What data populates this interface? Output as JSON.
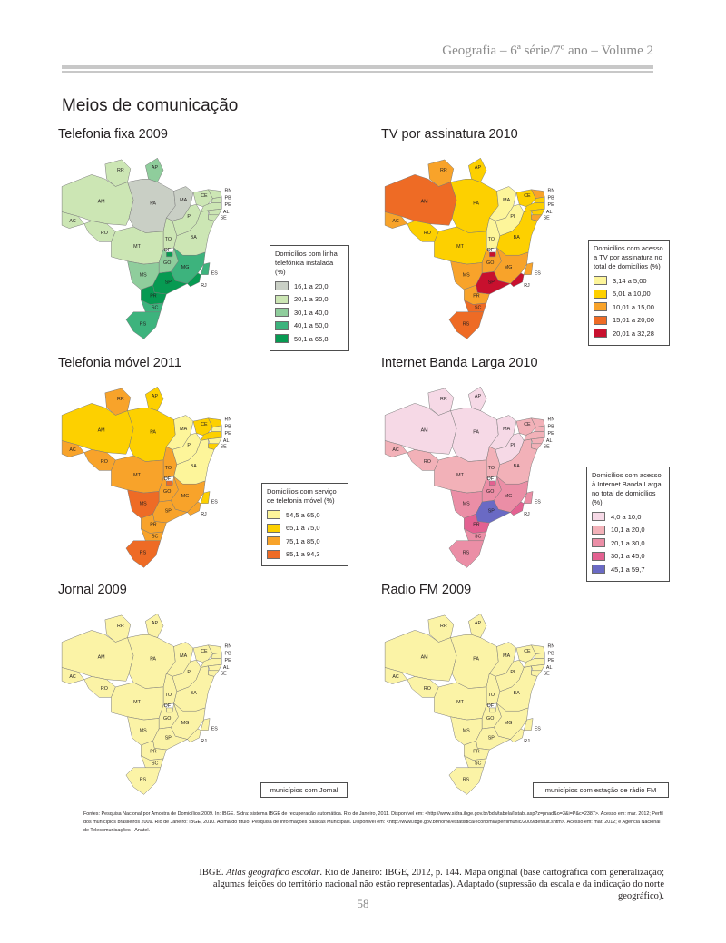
{
  "header": {
    "running_head": "Geografia – 6ª série/7º ano – Volume 2"
  },
  "title": "Meios de comunicação",
  "state_labels": [
    "RR",
    "AP",
    "AM",
    "PA",
    "MA",
    "CE",
    "RN",
    "PB",
    "PE",
    "AL",
    "SE",
    "AC",
    "RO",
    "TO",
    "PI",
    "BA",
    "MT",
    "DF",
    "GO",
    "MG",
    "ES",
    "MS",
    "SP",
    "RJ",
    "PR",
    "SC",
    "RS"
  ],
  "panels": [
    {
      "title": "Telefonia fixa 2009",
      "legend_title": "Domicílios com linha telefônica instalada (%)",
      "legend": [
        {
          "label": "16,1 a 20,0",
          "color": "#c9cfc5"
        },
        {
          "label": "20,1 a 30,0",
          "color": "#cce6b4"
        },
        {
          "label": "30,1 a 40,0",
          "color": "#8fcd9c"
        },
        {
          "label": "40,1 a 50,0",
          "color": "#3db37d"
        },
        {
          "label": "50,1 a 65,8",
          "color": "#079a52"
        }
      ],
      "states": {
        "RR": 1,
        "AP": 2,
        "AM": 1,
        "PA": 0,
        "MA": 0,
        "CE": 1,
        "RN": 1,
        "PB": 1,
        "PE": 1,
        "AL": 1,
        "SE": 1,
        "AC": 1,
        "RO": 1,
        "TO": 1,
        "PI": 1,
        "BA": 1,
        "MT": 1,
        "DF": 4,
        "GO": 2,
        "MG": 3,
        "ES": 3,
        "MS": 2,
        "SP": 4,
        "RJ": 4,
        "PR": 4,
        "SC": 3,
        "RS": 3
      }
    },
    {
      "title": "TV por assinatura 2010",
      "legend_title": "Domicílios com acesso a TV por assinatura no total de domicílios (%)",
      "legend": [
        {
          "label": "3,14 a 5,00",
          "color": "#fdf59a"
        },
        {
          "label": "5,01 a 10,00",
          "color": "#fdd000"
        },
        {
          "label": "10,01 a 15,00",
          "color": "#f8a32a"
        },
        {
          "label": "15,01 a 20,00",
          "color": "#ee6b25"
        },
        {
          "label": "20,01 a 32,28",
          "color": "#c8102e"
        }
      ],
      "states": {
        "RR": 2,
        "AP": 1,
        "AM": 3,
        "PA": 1,
        "MA": 0,
        "CE": 1,
        "RN": 2,
        "PB": 1,
        "PE": 1,
        "AL": 1,
        "SE": 2,
        "AC": 2,
        "RO": 1,
        "TO": 0,
        "PI": 0,
        "BA": 1,
        "MT": 1,
        "DF": 4,
        "GO": 2,
        "MG": 2,
        "ES": 2,
        "MS": 2,
        "SP": 4,
        "RJ": 4,
        "PR": 2,
        "SC": 3,
        "RS": 3
      }
    },
    {
      "title": "Telefonia móvel 2011",
      "legend_title": "Domicílios com serviço de telefonia móvel (%)",
      "legend": [
        {
          "label": "54,5 a 65,0",
          "color": "#fdf59a"
        },
        {
          "label": "65,1 a 75,0",
          "color": "#fdd000"
        },
        {
          "label": "75,1 a 85,0",
          "color": "#f8a32a"
        },
        {
          "label": "85,1 a 94,3",
          "color": "#ee6b25"
        }
      ],
      "states": {
        "RR": 2,
        "AP": 1,
        "AM": 1,
        "PA": 1,
        "MA": 0,
        "CE": 1,
        "RN": 1,
        "PB": 0,
        "PE": 1,
        "AL": 0,
        "SE": 1,
        "AC": 2,
        "RO": 2,
        "TO": 2,
        "PI": 0,
        "BA": 0,
        "MT": 2,
        "DF": 3,
        "GO": 2,
        "MG": 2,
        "ES": 1,
        "MS": 3,
        "SP": 2,
        "RJ": 2,
        "PR": 2,
        "SC": 2,
        "RS": 3
      }
    },
    {
      "title": "Internet Banda Larga 2010",
      "legend_title": "Domicílios com acesso à Internet Banda Larga no total de domicílios (%)",
      "legend": [
        {
          "label": "4,0 a 10,0",
          "color": "#f6d9e6"
        },
        {
          "label": "10,1 a 20,0",
          "color": "#f2b1b8"
        },
        {
          "label": "20,1 a 30,0",
          "color": "#eb8ea6"
        },
        {
          "label": "30,1 a 45,0",
          "color": "#e36191"
        },
        {
          "label": "45,1 a 59,7",
          "color": "#6a6ac4"
        }
      ],
      "states": {
        "RR": 0,
        "AP": 0,
        "AM": 0,
        "PA": 0,
        "MA": 0,
        "CE": 1,
        "RN": 1,
        "PB": 1,
        "PE": 1,
        "AL": 1,
        "SE": 1,
        "AC": 1,
        "RO": 1,
        "TO": 1,
        "PI": 0,
        "BA": 1,
        "MT": 1,
        "DF": 3,
        "GO": 2,
        "MG": 2,
        "ES": 2,
        "MS": 2,
        "SP": 4,
        "RJ": 3,
        "PR": 3,
        "SC": 2,
        "RS": 2
      }
    },
    {
      "title": "Jornal 2009",
      "simple_legend": "municípios com Jornal",
      "fill": "#fbf3a6"
    },
    {
      "title": "Radio FM 2009",
      "simple_legend": "municípios com estação de rádio FM",
      "fill": "#fbf3a6"
    }
  ],
  "sources": "Fontes: Pesquisa Nacional por Amostra de Domicílios 2009. In: IBGE. Sidra: sistema IBGE de recuperação automática. Rio de Janeiro, 2011. Disponível em: <http://www.sidra.ibge.gov.br/bda/tabela/listabl.asp?z=pnad&o=3&i=P&c=2387>. Acesso em: mar. 2012; Perfil dos municípios brasileiros 2009. Rio de Janeiro: IBGE, 2010. Acima do título: Pesquisa de Informações Básicas Municipais. Disponível em: <http://www.ibge.gov.br/home/estatistica/economia/perfilmunic/2009/default.shtm>. Acesso em: mar. 2012; e Agência Nacional de Telecomunicações - Anatel.",
  "credit": {
    "prefix": "IBGE. ",
    "italic": "Atlas geográfico escolar",
    "rest": ". Rio de Janeiro: IBGE, 2012, p. 144. Mapa original (base cartográfica com generalização; algumas feições do território nacional não estão representadas). Adaptado (supressão da escala e da indicação do norte geográfico)."
  },
  "page_number": "58"
}
